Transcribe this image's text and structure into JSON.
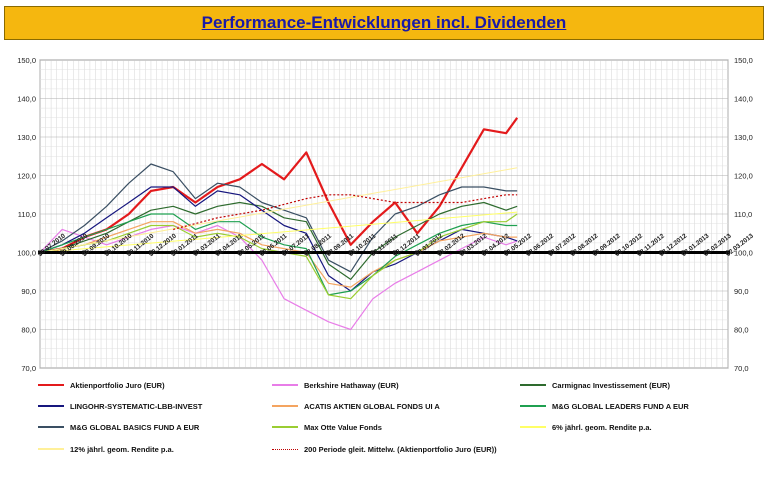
{
  "title": "Performance-Entwicklungen incl. Dividenden",
  "chart_data": {
    "type": "line",
    "title": "Performance-Entwicklungen incl. Dividenden",
    "ylim": [
      70,
      150
    ],
    "y_ticks": [
      "150,0",
      "140,0",
      "130,0",
      "120,0",
      "110,0",
      "100,0",
      "90,0",
      "80,0",
      "70,0"
    ],
    "y_ticks_right": [
      "150,0",
      "140,0",
      "130,0",
      "120,0",
      "110,0",
      "100,0",
      "90,0",
      "80,0",
      "70,0"
    ],
    "x_ticks": [
      "30.07.2010",
      "30.08.2010",
      "30.09.2010",
      "30.10.2010",
      "30.11.2010",
      "30.12.2010",
      "30.01.2011",
      "02.03.2011",
      "02.04.2011",
      "02.05.2011",
      "02.06.2011",
      "02.07.2011",
      "02.08.2011",
      "02.09.2011",
      "02.10.2011",
      "02.11.2011",
      "02.12.2011",
      "02.01.2012",
      "02.02.2012",
      "02.03.2012",
      "02.04.2012",
      "02.05.2012",
      "02.06.2012",
      "02.07.2012",
      "02.08.2012",
      "02.09.2012",
      "02.10.2012",
      "02.11.2012",
      "02.12.2012",
      "02.01.2013",
      "02.02.2013",
      "02.03.2013"
    ],
    "grid": true,
    "baseline": 100,
    "legend_position": "bottom",
    "series": [
      {
        "name": "Aktienportfolio Juro (EUR)",
        "color": "#e31a1c",
        "width": 2.2,
        "dash": "",
        "x": [
          0,
          1,
          2,
          3,
          4,
          5,
          6,
          7,
          8,
          9,
          10,
          11,
          12,
          13,
          14,
          15,
          16,
          17,
          18,
          19,
          20,
          21,
          21.5
        ],
        "y": [
          100,
          101,
          104,
          106,
          110,
          116,
          117,
          113,
          117,
          119,
          123,
          119,
          126,
          113,
          102,
          108,
          113,
          105,
          112,
          122,
          132,
          131,
          135
        ]
      },
      {
        "name": "Berkshire Hathaway (EUR)",
        "color": "#e87de8",
        "width": 1.2,
        "dash": "",
        "x": [
          0,
          1,
          2,
          3,
          4,
          5,
          6,
          7,
          8,
          9,
          10,
          11,
          12,
          13,
          14,
          15,
          16,
          17,
          18,
          19,
          20,
          21,
          21.5
        ],
        "y": [
          100,
          106,
          104,
          102,
          104,
          106,
          107,
          105,
          107,
          104,
          98,
          88,
          85,
          82,
          80,
          88,
          92,
          95,
          98,
          101,
          104,
          102,
          103
        ]
      },
      {
        "name": "Carmignac Investissement (EUR)",
        "color": "#2e6b2e",
        "width": 1.2,
        "dash": "",
        "x": [
          0,
          1,
          2,
          3,
          4,
          5,
          6,
          7,
          8,
          9,
          10,
          11,
          12,
          13,
          14,
          15,
          16,
          17,
          18,
          19,
          20,
          21,
          21.5
        ],
        "y": [
          100,
          101,
          103,
          105,
          108,
          111,
          112,
          110,
          112,
          113,
          112,
          109,
          108,
          97,
          93,
          100,
          104,
          107,
          110,
          112,
          113,
          111,
          112
        ]
      },
      {
        "name": "LINGOHR-SYSTEMATIC-LBB-INVEST",
        "color": "#16167e",
        "width": 1.2,
        "dash": "",
        "x": [
          0,
          1,
          2,
          3,
          4,
          5,
          6,
          7,
          8,
          9,
          10,
          11,
          12,
          13,
          14,
          15,
          16,
          17,
          18,
          19,
          20,
          21,
          21.5
        ],
        "y": [
          100,
          102,
          105,
          109,
          113,
          117,
          117,
          112,
          116,
          115,
          111,
          107,
          105,
          94,
          90,
          95,
          97,
          100,
          103,
          106,
          105,
          104,
          103
        ]
      },
      {
        "name": "ACATIS AKTIEN GLOBAL FONDS UI A",
        "color": "#f4a460",
        "width": 1.2,
        "dash": "",
        "x": [
          0,
          1,
          2,
          3,
          4,
          5,
          6,
          7,
          8,
          9,
          10,
          11,
          12,
          13,
          14,
          15,
          16,
          17,
          18,
          19,
          20,
          21,
          21.5
        ],
        "y": [
          100,
          101,
          102,
          104,
          106,
          108,
          108,
          105,
          106,
          105,
          102,
          101,
          100,
          92,
          91,
          95,
          98,
          100,
          103,
          104,
          105,
          104,
          104
        ]
      },
      {
        "name": "M&G GLOBAL LEADERS FUND A EUR",
        "color": "#1fa050",
        "width": 1.2,
        "dash": "",
        "x": [
          0,
          1,
          2,
          3,
          4,
          5,
          6,
          7,
          8,
          9,
          10,
          11,
          12,
          13,
          14,
          15,
          16,
          17,
          18,
          19,
          20,
          21,
          21.5
        ],
        "y": [
          100,
          102,
          104,
          106,
          108,
          110,
          110,
          106,
          108,
          108,
          104,
          102,
          101,
          89,
          90,
          94,
          99,
          102,
          105,
          107,
          108,
          107,
          107
        ]
      },
      {
        "name": "M&G GLOBAL BASICS FUND A EUR",
        "color": "#3a4f63",
        "width": 1.2,
        "dash": "",
        "x": [
          0,
          1,
          2,
          3,
          4,
          5,
          6,
          7,
          8,
          9,
          10,
          11,
          12,
          13,
          14,
          15,
          16,
          17,
          18,
          19,
          20,
          21,
          21.5
        ],
        "y": [
          100,
          103,
          107,
          112,
          118,
          123,
          121,
          114,
          118,
          117,
          113,
          111,
          109,
          98,
          95,
          104,
          110,
          112,
          115,
          117,
          117,
          116,
          116
        ]
      },
      {
        "name": "Max Otte Value Fonds",
        "color": "#9acd32",
        "width": 1.2,
        "dash": "",
        "x": [
          0,
          1,
          2,
          3,
          4,
          5,
          6,
          7,
          8,
          9,
          10,
          11,
          12,
          13,
          14,
          15,
          16,
          17,
          18,
          19,
          20,
          21,
          21.5
        ],
        "y": [
          100,
          101,
          102,
          103,
          105,
          107,
          107,
          104,
          105,
          104,
          101,
          100,
          99,
          89,
          88,
          94,
          98,
          100,
          104,
          106,
          108,
          108,
          110
        ]
      },
      {
        "name": "6% jährl. geom. Rendite p.a.",
        "color": "#ffff66",
        "width": 1,
        "dash": "",
        "x": [
          0,
          21.5
        ],
        "y": [
          100,
          110.5
        ]
      },
      {
        "name": "12% jährl. geom. Rendite p.a.",
        "color": "#fff099",
        "width": 1,
        "dash": "",
        "x": [
          0,
          21.5
        ],
        "y": [
          100,
          122
        ]
      },
      {
        "name": "200 Periode gleit. Mittelw. (Aktienportfolio Juro (EUR))",
        "color": "#c00000",
        "width": 1.2,
        "dash": "2,2",
        "x": [
          6,
          8,
          10,
          12,
          13,
          14,
          15,
          16,
          17,
          18,
          19,
          20,
          21,
          21.5
        ],
        "y": [
          106,
          109,
          111,
          114,
          115,
          115,
          114,
          113,
          113,
          113,
          113,
          114,
          115,
          115
        ]
      }
    ]
  }
}
